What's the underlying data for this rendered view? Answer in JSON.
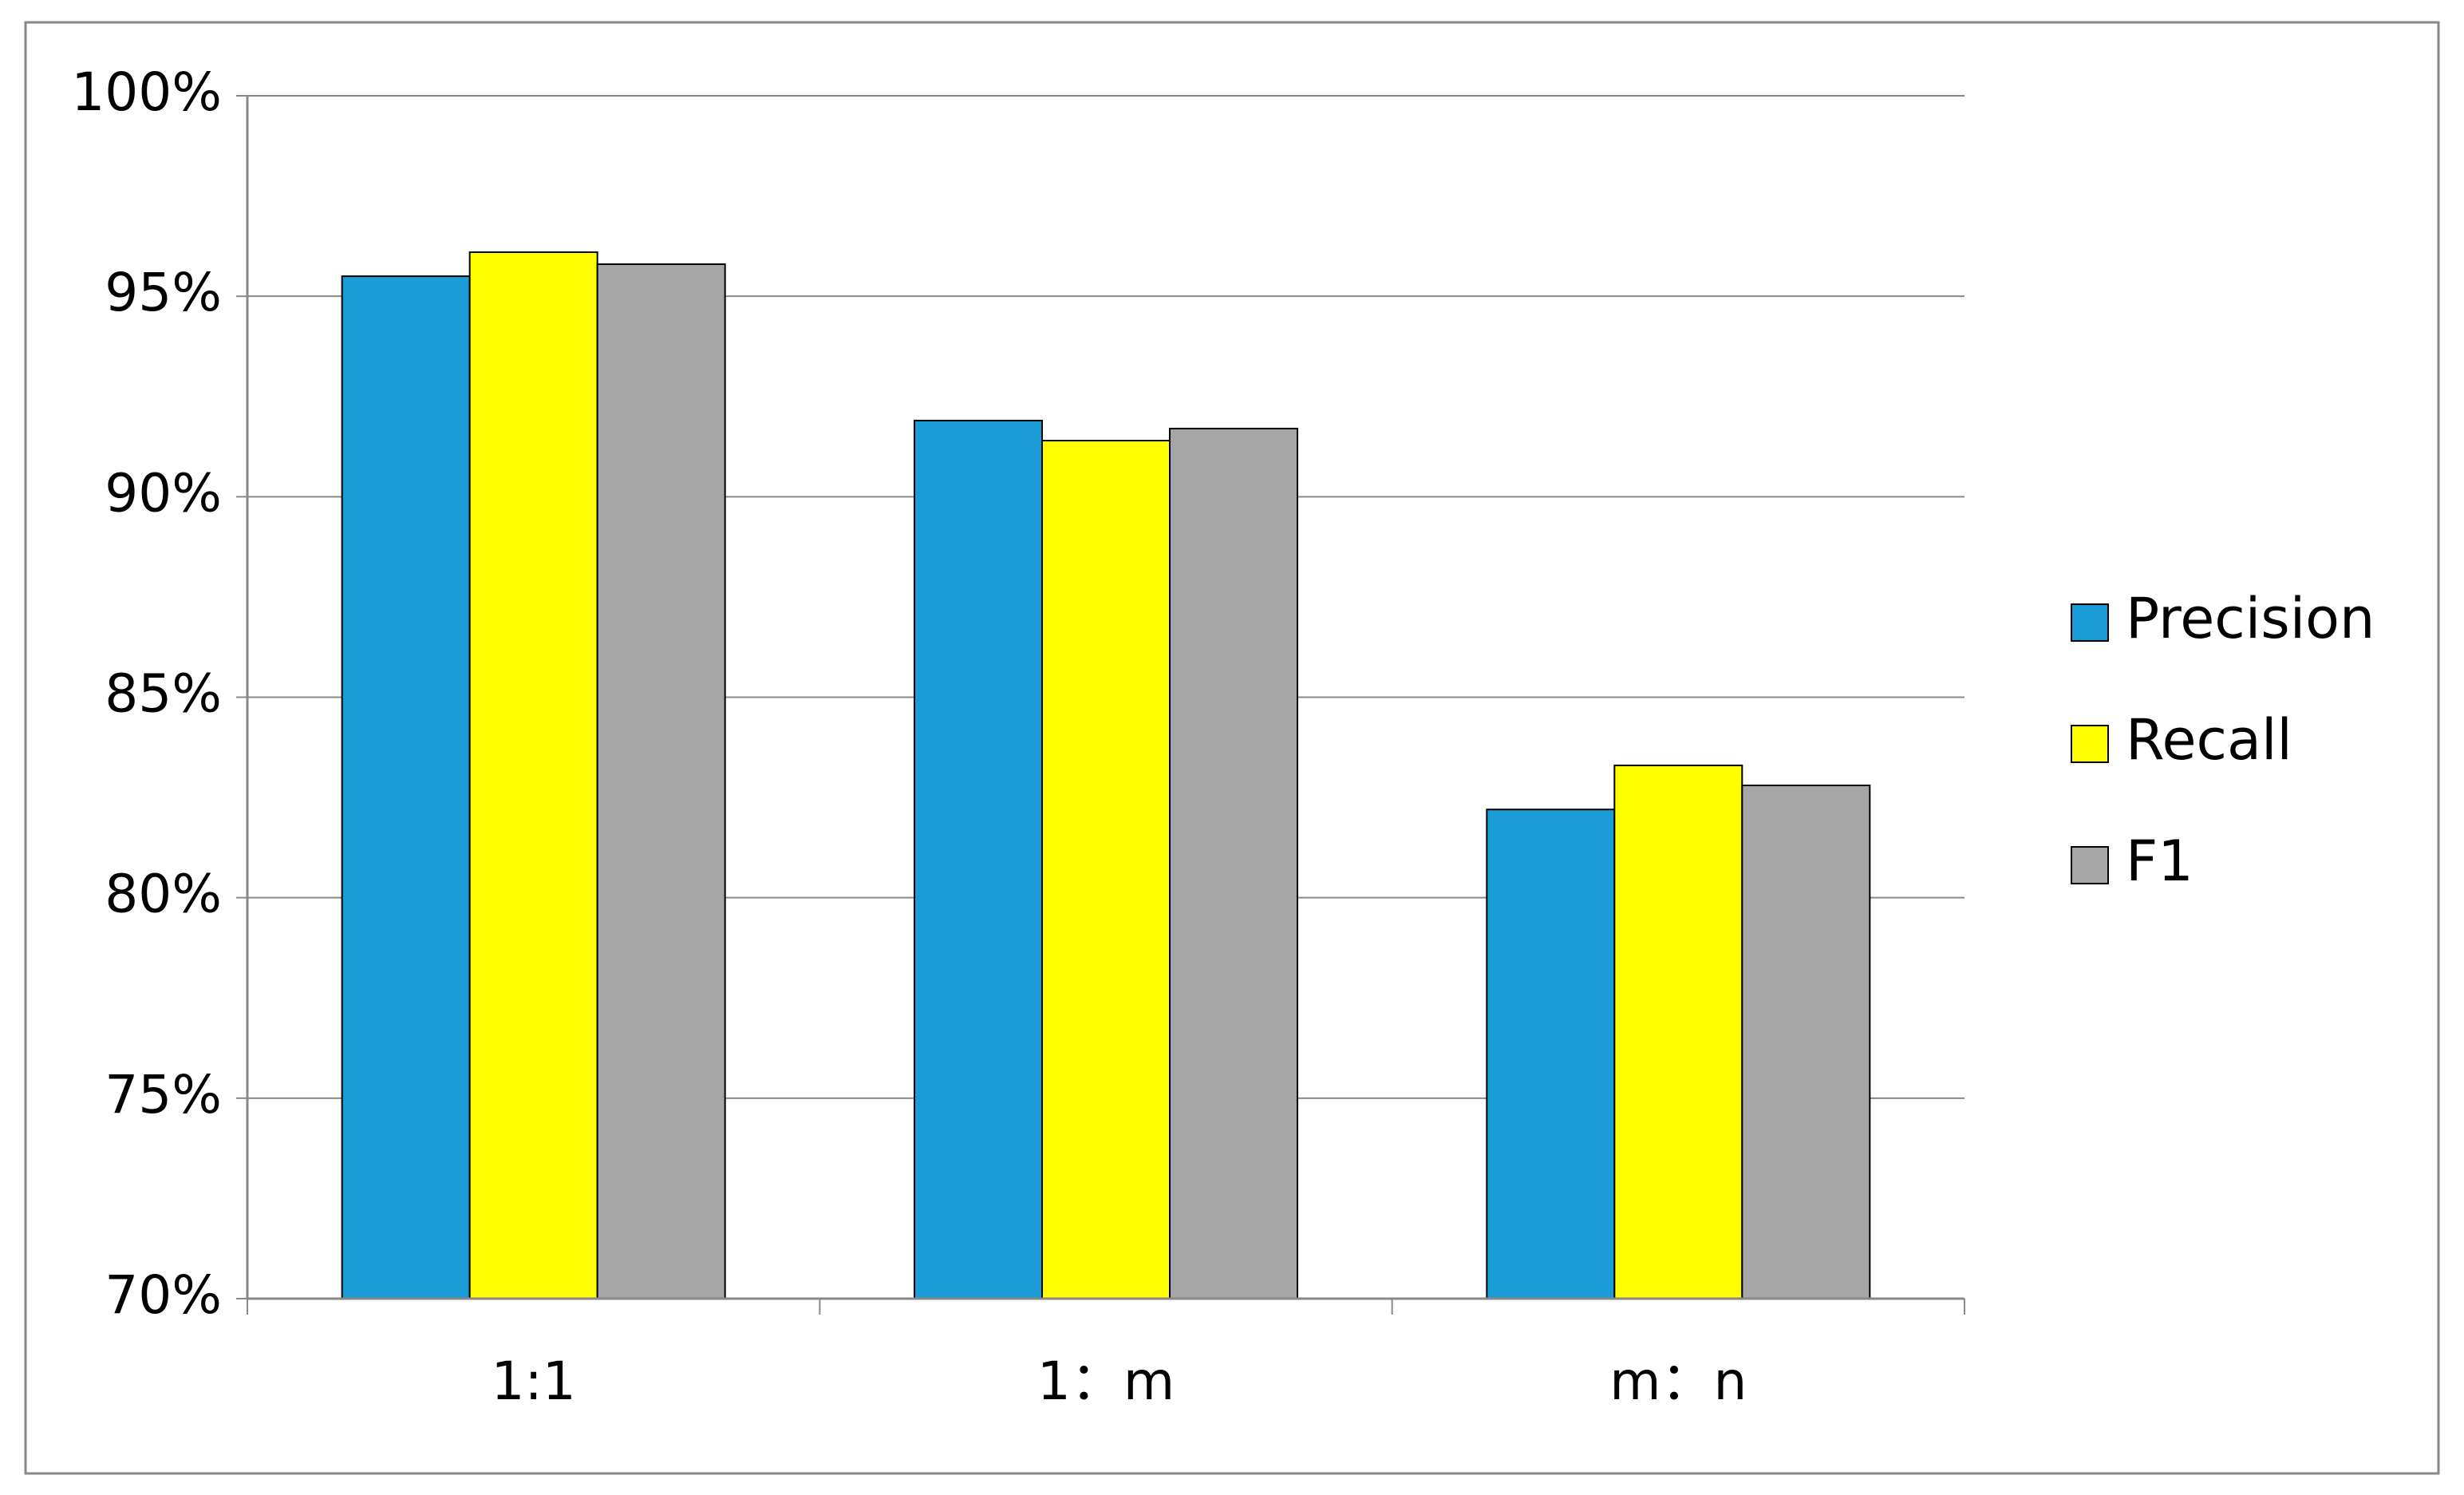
{
  "chart_data": {
    "type": "bar",
    "categories": [
      "1:1",
      "1：m",
      "m：n"
    ],
    "series": [
      {
        "name": "Precision",
        "color": "#1a9cd7",
        "values": [
          95.5,
          91.9,
          82.2
        ]
      },
      {
        "name": "Recall",
        "color": "#ffff00",
        "values": [
          96.1,
          91.4,
          83.3
        ]
      },
      {
        "name": "F1",
        "color": "#a6a6a6",
        "values": [
          95.8,
          91.7,
          82.8
        ]
      }
    ],
    "ylim": [
      70,
      100
    ],
    "yticks": [
      {
        "value": 70,
        "label": "70%"
      },
      {
        "value": 75,
        "label": "75%"
      },
      {
        "value": 80,
        "label": "80%"
      },
      {
        "value": 85,
        "label": "85%"
      },
      {
        "value": 90,
        "label": "90%"
      },
      {
        "value": 95,
        "label": "95%"
      },
      {
        "value": 100,
        "label": "100%"
      }
    ],
    "grid": true,
    "legend": "right"
  }
}
